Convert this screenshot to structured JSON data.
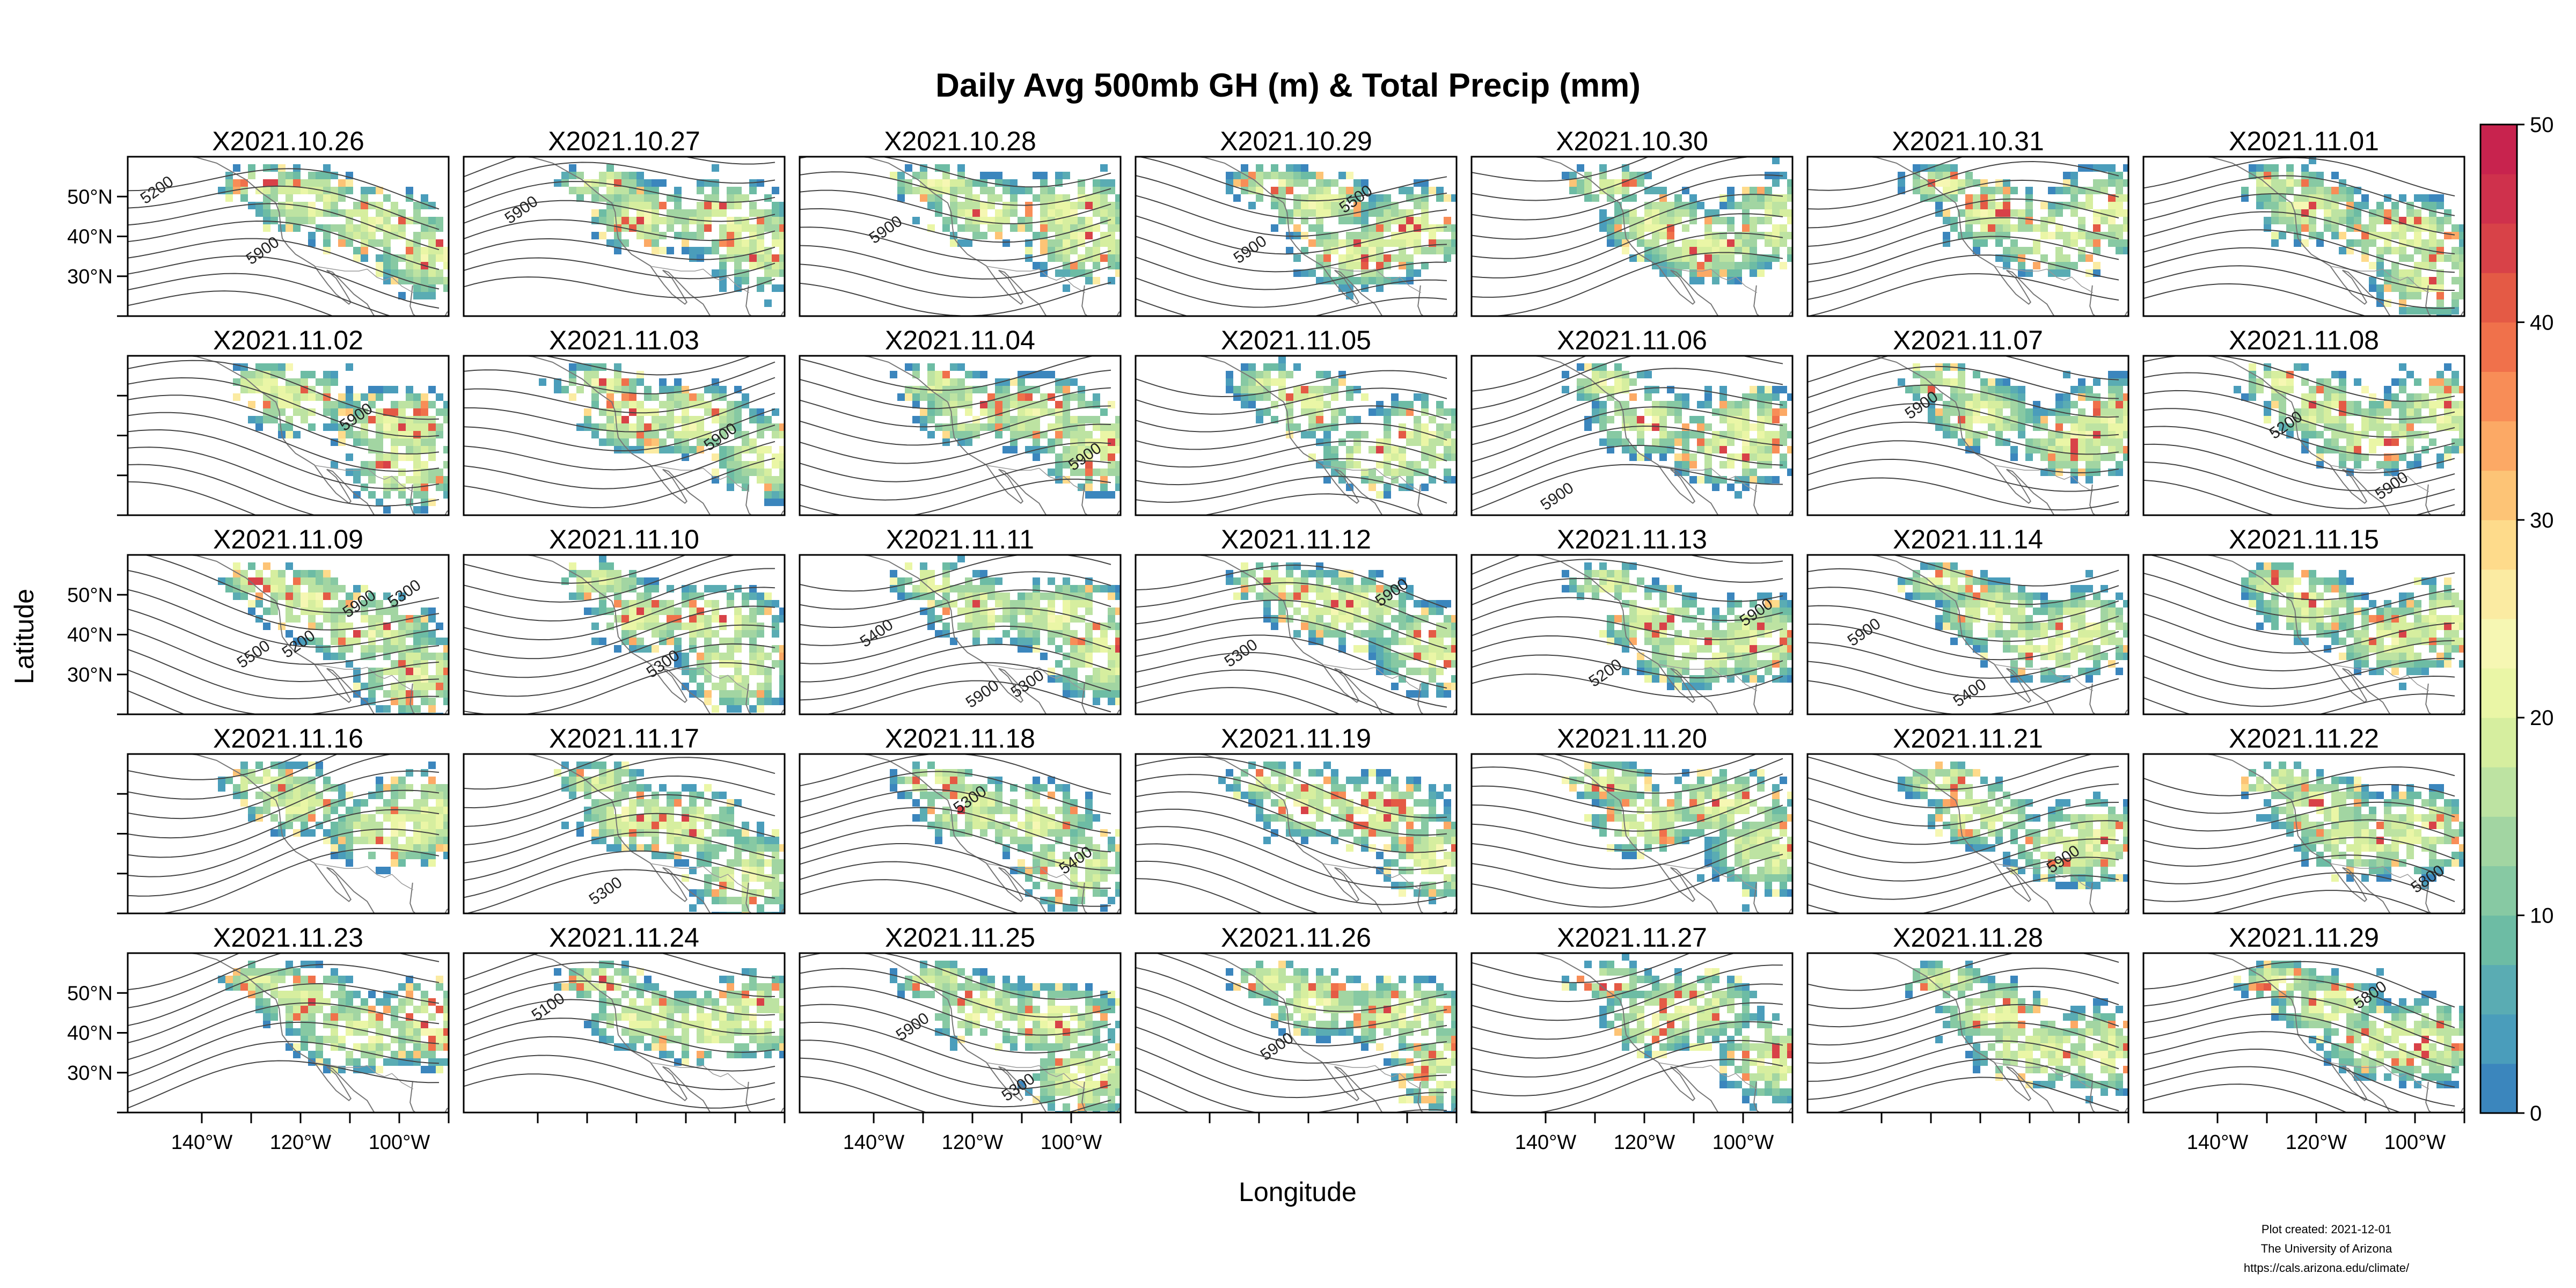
{
  "figure": {
    "title": "Daily Avg 500mb GH (m) & Total Precip (mm)",
    "xlabel": "Longitude",
    "ylabel": "Latitude",
    "credit": [
      "Plot created: 2021-12-01",
      "The University of Arizona",
      "https://cals.arizona.edu/climate/"
    ]
  },
  "colorbar": {
    "min": 0,
    "max": 50,
    "ticks": [
      "0",
      "10",
      "20",
      "30",
      "40",
      "50"
    ],
    "colors": [
      "#3b86bd",
      "#4a9dbb",
      "#5aacb3",
      "#6dbca4",
      "#87c9a3",
      "#a2d5a2",
      "#bde3a2",
      "#d6ee9f",
      "#eaf6a6",
      "#f6f7b3",
      "#fbeba2",
      "#fedb8b",
      "#fdc476",
      "#fca965",
      "#f88d57",
      "#f0714b",
      "#e45a45",
      "#d84248",
      "#cf314c",
      "#c8234e"
    ]
  },
  "axes": {
    "lat_ticks": [
      "50°N",
      "40°N",
      "30°N"
    ],
    "lon_ticks": [
      "140°W",
      "120°W",
      "100°W"
    ],
    "lat_range": [
      20,
      60
    ],
    "lon_range": [
      -155,
      -90
    ]
  },
  "panels": [
    {
      "label": "X2021.10.26",
      "contours": [
        "5200",
        "5900"
      ]
    },
    {
      "label": "X2021.10.27",
      "contours": [
        "5900"
      ]
    },
    {
      "label": "X2021.10.28",
      "contours": [
        "5900"
      ]
    },
    {
      "label": "X2021.10.29",
      "contours": [
        "5900",
        "5500"
      ]
    },
    {
      "label": "X2021.10.30",
      "contours": []
    },
    {
      "label": "X2021.10.31",
      "contours": []
    },
    {
      "label": "X2021.11.01",
      "contours": []
    },
    {
      "label": "X2021.11.02",
      "contours": [
        "5900"
      ]
    },
    {
      "label": "X2021.11.03",
      "contours": [
        "5900"
      ]
    },
    {
      "label": "X2021.11.04",
      "contours": [
        "5900"
      ]
    },
    {
      "label": "X2021.11.05",
      "contours": []
    },
    {
      "label": "X2021.11.06",
      "contours": [
        "5900"
      ]
    },
    {
      "label": "X2021.11.07",
      "contours": [
        "5900"
      ]
    },
    {
      "label": "X2021.11.08",
      "contours": [
        "5200",
        "5900"
      ]
    },
    {
      "label": "X2021.11.09",
      "contours": [
        "5200",
        "5300",
        "5500",
        "5900"
      ]
    },
    {
      "label": "X2021.11.10",
      "contours": [
        "5300"
      ]
    },
    {
      "label": "X2021.11.11",
      "contours": [
        "5300",
        "5400",
        "5900"
      ]
    },
    {
      "label": "X2021.11.12",
      "contours": [
        "5900",
        "5300"
      ]
    },
    {
      "label": "X2021.11.13",
      "contours": [
        "5900",
        "5200"
      ]
    },
    {
      "label": "X2021.11.14",
      "contours": [
        "5900",
        "5400"
      ]
    },
    {
      "label": "X2021.11.15",
      "contours": []
    },
    {
      "label": "X2021.11.16",
      "contours": []
    },
    {
      "label": "X2021.11.17",
      "contours": [
        "5300"
      ]
    },
    {
      "label": "X2021.11.18",
      "contours": [
        "5300",
        "5400"
      ]
    },
    {
      "label": "X2021.11.19",
      "contours": []
    },
    {
      "label": "X2021.11.20",
      "contours": []
    },
    {
      "label": "X2021.11.21",
      "contours": [
        "5900"
      ]
    },
    {
      "label": "X2021.11.22",
      "contours": [
        "5800"
      ]
    },
    {
      "label": "X2021.11.23",
      "contours": []
    },
    {
      "label": "X2021.11.24",
      "contours": [
        "5100"
      ]
    },
    {
      "label": "X2021.11.25",
      "contours": [
        "5900",
        "5300"
      ]
    },
    {
      "label": "X2021.11.26",
      "contours": [
        "5900"
      ]
    },
    {
      "label": "X2021.11.27",
      "contours": []
    },
    {
      "label": "X2021.11.28",
      "contours": []
    },
    {
      "label": "X2021.11.29",
      "contours": [
        "5800"
      ]
    }
  ]
}
